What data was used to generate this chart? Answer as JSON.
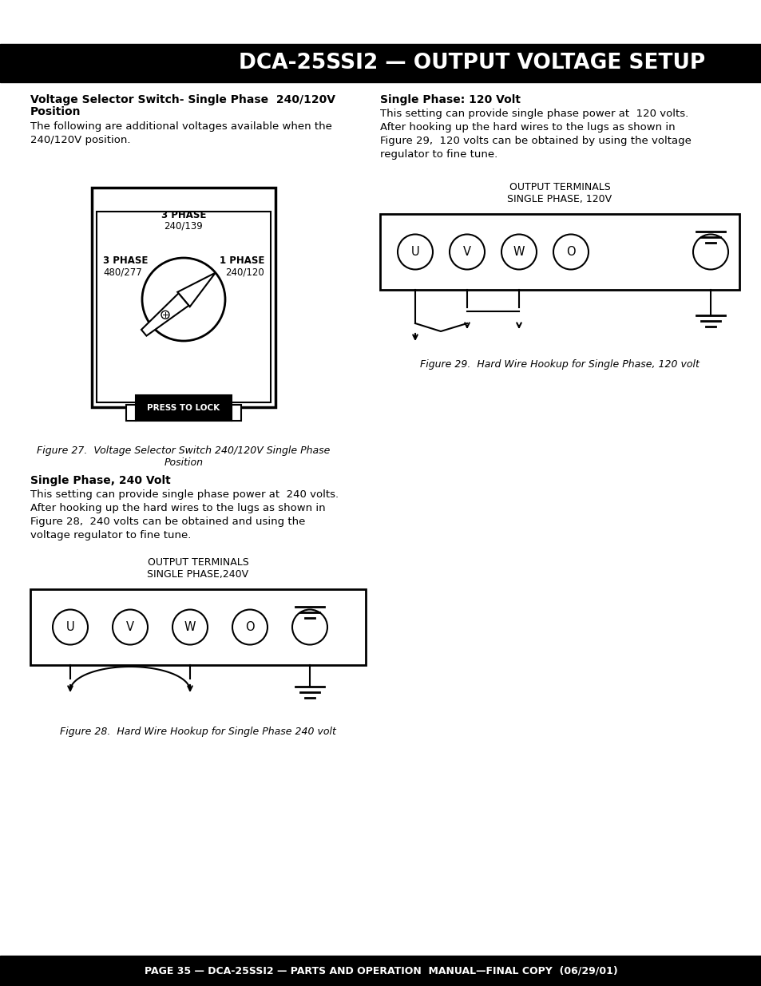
{
  "title": "DCA-25SSI2 — OUTPUT VOLTAGE SETUP",
  "footer": "PAGE 35 — DCA-25SSI2 — PARTS AND OPERATION  MANUAL—FINAL COPY  (06/29/01)",
  "title_bg": "#000000",
  "title_color": "#ffffff",
  "footer_bg": "#000000",
  "footer_color": "#ffffff",
  "body_bg": "#ffffff",
  "section1_title_line1": "Voltage Selector Switch- Single Phase  240/120V",
  "section1_title_line2": "Position",
  "section1_body": "The following are additional voltages available when the\n240/120V position.",
  "section2_title": "Single Phase: 120 Volt",
  "section2_body": "This setting can provide single phase power at  120 volts.\nAfter hooking up the hard wires to the lugs as shown in\nFigure 29,  120 volts can be obtained by using the voltage\nregulator to fine tune.",
  "section3_title": "Single Phase, 240 Volt",
  "section3_body": "This setting can provide single phase power at  240 volts.\nAfter hooking up the hard wires to the lugs as shown in\nFigure 28,  240 volts can be obtained and using the\nvoltage regulator to fine tune.",
  "fig27_caption_line1": "Figure 27.  Voltage Selector Switch 240/120V Single Phase",
  "fig27_caption_line2": "Position",
  "fig28_caption": "Figure 28.  Hard Wire Hookup for Single Phase 240 volt",
  "fig29_caption": "Figure 29.  Hard Wire Hookup for Single Phase, 120 volt",
  "fig28_label": "OUTPUT TERMINALS\nSINGLE PHASE,240V",
  "fig29_label": "OUTPUT TERMINALS\nSINGLE PHASE, 120V"
}
